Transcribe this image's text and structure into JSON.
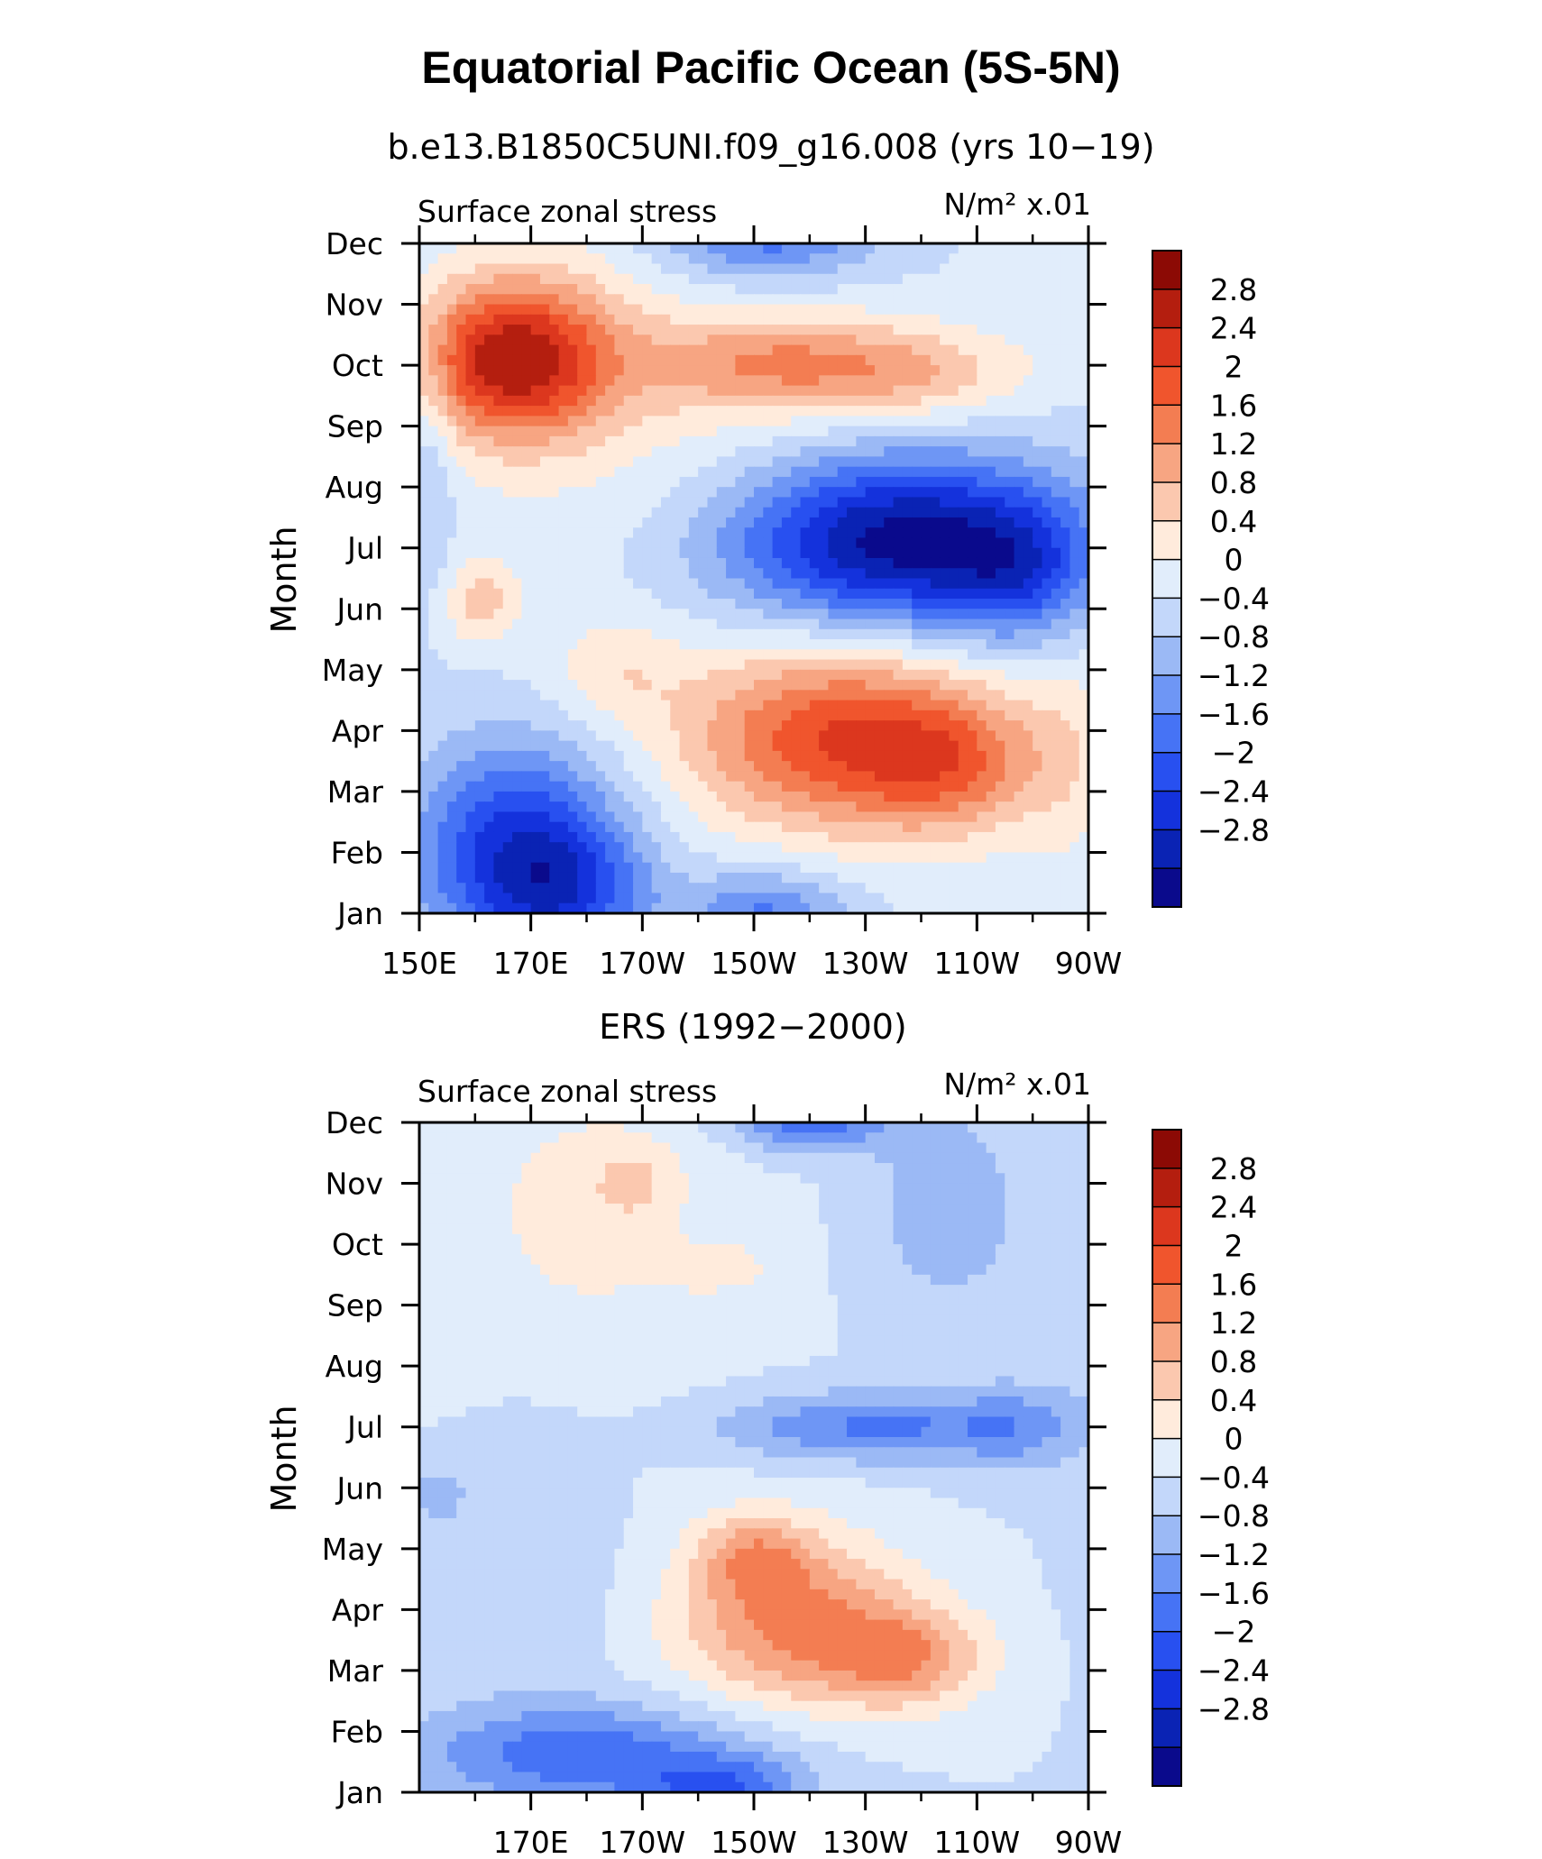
{
  "title": "Equatorial Pacific Ocean (5S-5N)",
  "chart_data": [
    {
      "type": "heatmap",
      "subtitle": "b.e13.B1850C5UNI.f09_g16.008 (yrs 10−19)",
      "left_label": "Surface zonal stress",
      "right_label": "N/m² x.01",
      "ylabel": "Month",
      "x_range": [
        150,
        270
      ],
      "x_ticks": [
        {
          "v": 150,
          "label": "150E"
        },
        {
          "v": 170,
          "label": "170E"
        },
        {
          "v": 190,
          "label": "170W"
        },
        {
          "v": 210,
          "label": "150W"
        },
        {
          "v": 230,
          "label": "130W"
        },
        {
          "v": 250,
          "label": "110W"
        },
        {
          "v": 270,
          "label": "90W"
        }
      ],
      "months": [
        "Jan",
        "Feb",
        "Mar",
        "Apr",
        "May",
        "Jun",
        "Jul",
        "Aug",
        "Sep",
        "Oct",
        "Nov",
        "Dec"
      ],
      "features": [
        {
          "lon": 167,
          "month": 9.1,
          "amp": 2.9,
          "sx": 12,
          "sy": 0.9
        },
        {
          "lon": 217,
          "month": 9.0,
          "amp": 1.4,
          "sx": 18,
          "sy": 0.55
        },
        {
          "lon": 242,
          "month": 8.8,
          "amp": 0.7,
          "sx": 12,
          "sy": 0.5
        },
        {
          "lon": 236,
          "month": 6.1,
          "amp": -3.1,
          "sx": 22,
          "sy": 1.0
        },
        {
          "lon": 258,
          "month": 5.6,
          "amp": -1.0,
          "sx": 9,
          "sy": 0.8
        },
        {
          "lon": 225,
          "month": 2.9,
          "amp": 2.3,
          "sx": 20,
          "sy": 1.1
        },
        {
          "lon": 246,
          "month": 2.4,
          "amp": 1.2,
          "sx": 12,
          "sy": 0.8
        },
        {
          "lon": 185,
          "month": 4.0,
          "amp": 0.6,
          "sx": 8,
          "sy": 0.6
        },
        {
          "lon": 161,
          "month": 5.1,
          "amp": 0.9,
          "sx": 5,
          "sy": 0.5
        },
        {
          "lon": 168,
          "month": 1.0,
          "amp": -2.3,
          "sx": 13,
          "sy": 1.2
        },
        {
          "lon": 178,
          "month": 0.3,
          "amp": -1.0,
          "sx": 10,
          "sy": 0.7
        },
        {
          "lon": 212,
          "month": 0.0,
          "amp": -1.3,
          "sx": 10,
          "sy": 0.5
        },
        {
          "lon": 212,
          "month": 11.2,
          "amp": -1.6,
          "sx": 14,
          "sy": 0.6
        },
        {
          "lon": 152,
          "month": 7.3,
          "amp": -0.6,
          "sx": 3,
          "sy": 1.5
        },
        {
          "lon": 190,
          "month": 8.6,
          "amp": 0.5,
          "sx": 30,
          "sy": 2.2
        },
        {
          "lon": 265,
          "month": 10.5,
          "amp": 0.3,
          "sx": 8,
          "sy": 1.0
        },
        {
          "lon": 267,
          "month": 2.5,
          "amp": 0.4,
          "sx": 6,
          "sy": 1.5
        }
      ]
    },
    {
      "type": "heatmap",
      "subtitle": "ERS (1992−2000)",
      "left_label": "Surface zonal stress",
      "right_label": "N/m² x.01",
      "ylabel": "Month",
      "x_range": [
        150,
        270
      ],
      "x_ticks": [
        {
          "v": 170,
          "label": "170E"
        },
        {
          "v": 190,
          "label": "170W"
        },
        {
          "v": 210,
          "label": "150W"
        },
        {
          "v": 230,
          "label": "130W"
        },
        {
          "v": 250,
          "label": "110W"
        },
        {
          "v": 270,
          "label": "90W"
        }
      ],
      "months": [
        "Jan",
        "Feb",
        "Mar",
        "Apr",
        "May",
        "Jun",
        "Jul",
        "Aug",
        "Sep",
        "Oct",
        "Nov",
        "Dec"
      ],
      "features": [
        {
          "lon": 217,
          "month": 2.8,
          "amp": 1.7,
          "sx": 15,
          "sy": 1.0
        },
        {
          "lon": 238,
          "month": 2.2,
          "amp": 1.3,
          "sx": 10,
          "sy": 0.6
        },
        {
          "lon": 210,
          "month": 3.9,
          "amp": 1.0,
          "sx": 7,
          "sy": 0.5
        },
        {
          "lon": 180,
          "month": 9.5,
          "amp": 0.5,
          "sx": 20,
          "sy": 2.0
        },
        {
          "lon": 188,
          "month": 10.0,
          "amp": 0.6,
          "sx": 5,
          "sy": 0.4
        },
        {
          "lon": 205,
          "month": 8.6,
          "amp": 0.4,
          "sx": 7,
          "sy": 0.3
        },
        {
          "lon": 232,
          "month": 6.0,
          "amp": -1.3,
          "sx": 20,
          "sy": 0.4
        },
        {
          "lon": 257,
          "month": 6.0,
          "amp": -0.6,
          "sx": 7,
          "sy": 0.6
        },
        {
          "lon": 245,
          "month": 9.6,
          "amp": -0.7,
          "sx": 10,
          "sy": 1.2
        },
        {
          "lon": 220,
          "month": 11.1,
          "amp": -1.6,
          "sx": 10,
          "sy": 0.4
        },
        {
          "lon": 180,
          "month": 0.6,
          "amp": -1.5,
          "sx": 22,
          "sy": 0.6
        },
        {
          "lon": 205,
          "month": 0.0,
          "amp": -1.3,
          "sx": 10,
          "sy": 0.4
        },
        {
          "lon": 153,
          "month": 4.9,
          "amp": -0.5,
          "sx": 4,
          "sy": 0.4
        },
        {
          "lon": 170,
          "month": 4.0,
          "amp": -0.4,
          "sx": 10,
          "sy": 1.6
        },
        {
          "lon": 268,
          "month": 8.0,
          "amp": -0.2,
          "sx": 4,
          "sy": 3.0
        }
      ]
    }
  ],
  "colorbar": {
    "labels": [
      "2.8",
      "2.4",
      "2",
      "1.6",
      "1.2",
      "0.8",
      "0.4",
      "0",
      "−0.4",
      "−0.8",
      "−1.2",
      "−1.6",
      "−2",
      "−2.4",
      "−2.8"
    ],
    "levels": [
      -2.8,
      -2.4,
      -2.0,
      -1.6,
      -1.2,
      -0.8,
      -0.4,
      0,
      0.4,
      0.8,
      1.2,
      1.6,
      2.0,
      2.4,
      2.8
    ],
    "colors": [
      "#0A0A8C",
      "#0A23B4",
      "#1432DC",
      "#2850F0",
      "#4673F5",
      "#6E96F5",
      "#9BB9F5",
      "#C3D7FA",
      "#E1EDFB",
      "#FFEBDC",
      "#FBC8AF",
      "#F7A582",
      "#F37D52",
      "#F0552D",
      "#DC371E",
      "#B41E0F",
      "#8C0A05"
    ]
  }
}
